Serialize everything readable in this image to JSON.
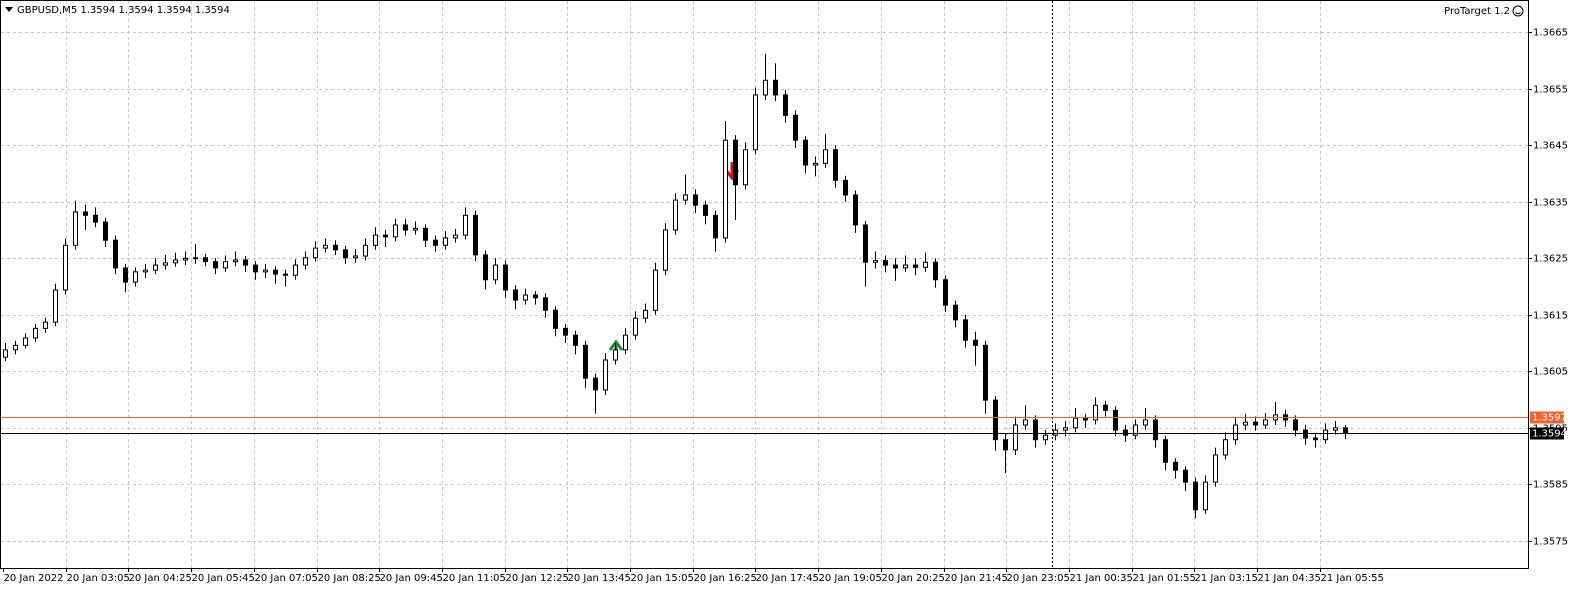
{
  "chart_data": {
    "type": "candlestick",
    "title": "GBPUSD,M5  1.3594 1.3594 1.3594 1.3594",
    "indicator": "ProTarget 1.2",
    "ylim": [
      1.35702,
      1.36707
    ],
    "yticks": [
      1.3575,
      1.3585,
      1.3595,
      1.3605,
      1.3615,
      1.3625,
      1.3635,
      1.3645,
      1.3655,
      1.3665
    ],
    "grid": true,
    "xtick_labels": [
      "20 Jan 2022",
      "20 Jan 03:05",
      "20 Jan 04:25",
      "20 Jan 05:45",
      "20 Jan 07:05",
      "20 Jan 08:25",
      "20 Jan 09:45",
      "20 Jan 11:05",
      "20 Jan 12:25",
      "20 Jan 13:45",
      "20 Jan 15:05",
      "20 Jan 16:25",
      "20 Jan 17:45",
      "20 Jan 19:05",
      "20 Jan 20:25",
      "20 Jan 21:45",
      "20 Jan 23:05",
      "21 Jan 00:35",
      "21 Jan 01:55",
      "21 Jan 03:15",
      "21 Jan 04:35",
      "21 Jan 05:55"
    ],
    "price_lines": [
      {
        "value": 1.3597,
        "color": "#f0642a",
        "label_color": "#fff"
      },
      {
        "value": 1.3594,
        "color": "#000000",
        "label_color": "#fff"
      }
    ],
    "candles": [
      [
        1.36075,
        1.361,
        1.36068,
        1.36088
      ],
      [
        1.36088,
        1.36104,
        1.3608,
        1.36096
      ],
      [
        1.36096,
        1.36117,
        1.3609,
        1.36109
      ],
      [
        1.36109,
        1.36134,
        1.36102,
        1.36126
      ],
      [
        1.36126,
        1.36145,
        1.36118,
        1.36137
      ],
      [
        1.36137,
        1.36205,
        1.3613,
        1.36194
      ],
      [
        1.36194,
        1.36285,
        1.36186,
        1.36273
      ],
      [
        1.36273,
        1.36352,
        1.36265,
        1.36332
      ],
      [
        1.36332,
        1.36345,
        1.363,
        1.36326
      ],
      [
        1.36326,
        1.3634,
        1.36305,
        1.36314
      ],
      [
        1.36314,
        1.36322,
        1.3627,
        1.36282
      ],
      [
        1.36282,
        1.3629,
        1.36222,
        1.36233
      ],
      [
        1.36233,
        1.3624,
        1.3619,
        1.36208
      ],
      [
        1.36208,
        1.36234,
        1.362,
        1.36226
      ],
      [
        1.36226,
        1.3624,
        1.36215,
        1.36229
      ],
      [
        1.36229,
        1.3625,
        1.36222,
        1.36238
      ],
      [
        1.36238,
        1.36256,
        1.3623,
        1.36242
      ],
      [
        1.36242,
        1.3626,
        1.36235,
        1.36247
      ],
      [
        1.36247,
        1.36262,
        1.36238,
        1.3625
      ],
      [
        1.3625,
        1.36275,
        1.3624,
        1.36251
      ],
      [
        1.36251,
        1.36258,
        1.36236,
        1.36244
      ],
      [
        1.36244,
        1.3625,
        1.36222,
        1.36233
      ],
      [
        1.36233,
        1.36255,
        1.36226,
        1.36244
      ],
      [
        1.36244,
        1.36262,
        1.36236,
        1.36247
      ],
      [
        1.36247,
        1.36254,
        1.36226,
        1.36238
      ],
      [
        1.36238,
        1.36245,
        1.36212,
        1.36226
      ],
      [
        1.36226,
        1.3624,
        1.36215,
        1.36229
      ],
      [
        1.36229,
        1.36236,
        1.36205,
        1.36222
      ],
      [
        1.36222,
        1.3623,
        1.362,
        1.3622
      ],
      [
        1.3622,
        1.36248,
        1.36212,
        1.36238
      ],
      [
        1.36238,
        1.36262,
        1.3623,
        1.36251
      ],
      [
        1.36251,
        1.3628,
        1.36244,
        1.36268
      ],
      [
        1.36268,
        1.36285,
        1.3626,
        1.36273
      ],
      [
        1.36273,
        1.36282,
        1.36256,
        1.36265
      ],
      [
        1.36265,
        1.36272,
        1.3624,
        1.36251
      ],
      [
        1.36251,
        1.36266,
        1.36242,
        1.36254
      ],
      [
        1.36254,
        1.36285,
        1.36246,
        1.36273
      ],
      [
        1.36273,
        1.36305,
        1.36265,
        1.36291
      ],
      [
        1.36291,
        1.363,
        1.3627,
        1.36288
      ],
      [
        1.36288,
        1.3632,
        1.3628,
        1.36309
      ],
      [
        1.36309,
        1.3632,
        1.3629,
        1.363
      ],
      [
        1.363,
        1.36315,
        1.36292,
        1.36303
      ],
      [
        1.36303,
        1.3631,
        1.3627,
        1.36282
      ],
      [
        1.36282,
        1.3629,
        1.36262,
        1.36273
      ],
      [
        1.36273,
        1.36298,
        1.36265,
        1.36286
      ],
      [
        1.36286,
        1.36302,
        1.36278,
        1.36291
      ],
      [
        1.36291,
        1.3634,
        1.36284,
        1.36326
      ],
      [
        1.36326,
        1.36334,
        1.36245,
        1.36256
      ],
      [
        1.36256,
        1.36264,
        1.36195,
        1.36212
      ],
      [
        1.36212,
        1.3625,
        1.36204,
        1.36238
      ],
      [
        1.36238,
        1.36246,
        1.3618,
        1.36194
      ],
      [
        1.36194,
        1.36202,
        1.3616,
        1.36176
      ],
      [
        1.36176,
        1.36196,
        1.36168,
        1.36185
      ],
      [
        1.36185,
        1.36192,
        1.36168,
        1.3618
      ],
      [
        1.3618,
        1.36188,
        1.36145,
        1.36158
      ],
      [
        1.36158,
        1.36165,
        1.36112,
        1.36126
      ],
      [
        1.36126,
        1.36134,
        1.361,
        1.36114
      ],
      [
        1.36114,
        1.36122,
        1.3608,
        1.36096
      ],
      [
        1.36096,
        1.36104,
        1.3602,
        1.36038
      ],
      [
        1.36038,
        1.36046,
        1.35975,
        1.36017
      ],
      [
        1.36017,
        1.36082,
        1.36008,
        1.3607
      ],
      [
        1.3607,
        1.361,
        1.36062,
        1.36088
      ],
      [
        1.36088,
        1.36126,
        1.3608,
        1.36114
      ],
      [
        1.36114,
        1.36156,
        1.36106,
        1.36144
      ],
      [
        1.36144,
        1.3617,
        1.36136,
        1.36158
      ],
      [
        1.36158,
        1.36242,
        1.3615,
        1.36229
      ],
      [
        1.36229,
        1.36312,
        1.3622,
        1.363
      ],
      [
        1.363,
        1.36365,
        1.36292,
        1.36353
      ],
      [
        1.36353,
        1.36398,
        1.36345,
        1.36362
      ],
      [
        1.36362,
        1.36372,
        1.3633,
        1.36344
      ],
      [
        1.36344,
        1.36352,
        1.3631,
        1.36326
      ],
      [
        1.36326,
        1.36334,
        1.36262,
        1.36286
      ],
      [
        1.36286,
        1.36493,
        1.36278,
        1.36459
      ],
      [
        1.36459,
        1.36468,
        1.36318,
        1.3638
      ],
      [
        1.3638,
        1.36455,
        1.36372,
        1.36442
      ],
      [
        1.36442,
        1.36552,
        1.36434,
        1.36539
      ],
      [
        1.36539,
        1.36612,
        1.3653,
        1.36565
      ],
      [
        1.36565,
        1.36595,
        1.36528,
        1.36539
      ],
      [
        1.36539,
        1.36548,
        1.3649,
        1.36503
      ],
      [
        1.36503,
        1.36512,
        1.36445,
        1.36459
      ],
      [
        1.36459,
        1.36466,
        1.364,
        1.36415
      ],
      [
        1.36415,
        1.3643,
        1.36395,
        1.36418
      ],
      [
        1.36418,
        1.3647,
        1.3641,
        1.36442
      ],
      [
        1.36442,
        1.3645,
        1.36375,
        1.36388
      ],
      [
        1.36388,
        1.36396,
        1.3635,
        1.36362
      ],
      [
        1.36362,
        1.3637,
        1.36295,
        1.36309
      ],
      [
        1.36309,
        1.36316,
        1.362,
        1.36243
      ],
      [
        1.36243,
        1.36262,
        1.36232,
        1.36246
      ],
      [
        1.36246,
        1.36255,
        1.36225,
        1.36238
      ],
      [
        1.36238,
        1.3625,
        1.3621,
        1.36233
      ],
      [
        1.36233,
        1.36255,
        1.36226,
        1.36238
      ],
      [
        1.36238,
        1.3625,
        1.3622,
        1.36234
      ],
      [
        1.36234,
        1.3626,
        1.36226,
        1.36243
      ],
      [
        1.36243,
        1.3625,
        1.36198,
        1.36212
      ],
      [
        1.36212,
        1.3622,
        1.36155,
        1.36167
      ],
      [
        1.36167,
        1.36175,
        1.36128,
        1.36141
      ],
      [
        1.36141,
        1.3615,
        1.36092,
        1.36105
      ],
      [
        1.36105,
        1.3612,
        1.3606,
        1.36096
      ],
      [
        1.36096,
        1.36104,
        1.35975,
        1.35999
      ],
      [
        1.35999,
        1.36006,
        1.3591,
        1.35929
      ],
      [
        1.35929,
        1.3594,
        1.3587,
        1.35911
      ],
      [
        1.35911,
        1.3597,
        1.35902,
        1.35955
      ],
      [
        1.35955,
        1.3599,
        1.35946,
        1.35964
      ],
      [
        1.35964,
        1.35972,
        1.35915,
        1.35929
      ],
      [
        1.35929,
        1.35946,
        1.3592,
        1.35937
      ],
      [
        1.35937,
        1.35958,
        1.35928,
        1.35946
      ],
      [
        1.35946,
        1.35962,
        1.35935,
        1.3595
      ],
      [
        1.3595,
        1.35985,
        1.35942,
        1.35967
      ],
      [
        1.35967,
        1.35975,
        1.3595,
        1.35964
      ],
      [
        1.35964,
        1.36004,
        1.35956,
        1.3599
      ],
      [
        1.3599,
        1.35998,
        1.3597,
        1.35981
      ],
      [
        1.35981,
        1.35988,
        1.35935,
        1.35946
      ],
      [
        1.35946,
        1.35955,
        1.35925,
        1.35937
      ],
      [
        1.35937,
        1.35965,
        1.3593,
        1.35955
      ],
      [
        1.35955,
        1.35985,
        1.35946,
        1.35964
      ],
      [
        1.35964,
        1.35972,
        1.35915,
        1.35929
      ],
      [
        1.35929,
        1.35936,
        1.35875,
        1.35889
      ],
      [
        1.35889,
        1.35896,
        1.3586,
        1.35875
      ],
      [
        1.35875,
        1.35882,
        1.35838,
        1.35854
      ],
      [
        1.35854,
        1.35862,
        1.3579,
        1.35805
      ],
      [
        1.35805,
        1.35866,
        1.35798,
        1.35854
      ],
      [
        1.35854,
        1.35915,
        1.35846,
        1.35902
      ],
      [
        1.35902,
        1.35942,
        1.35894,
        1.35929
      ],
      [
        1.35929,
        1.35968,
        1.3592,
        1.35955
      ],
      [
        1.35955,
        1.35975,
        1.35946,
        1.3596
      ],
      [
        1.3596,
        1.3597,
        1.35945,
        1.35955
      ],
      [
        1.35955,
        1.35976,
        1.35948,
        1.35964
      ],
      [
        1.35964,
        1.35996,
        1.35955,
        1.35973
      ],
      [
        1.35973,
        1.35982,
        1.35952,
        1.35964
      ],
      [
        1.35964,
        1.35972,
        1.35935,
        1.35946
      ],
      [
        1.35946,
        1.35955,
        1.3592,
        1.35932
      ],
      [
        1.35932,
        1.3594,
        1.35915,
        1.35929
      ],
      [
        1.35929,
        1.35958,
        1.35922,
        1.35946
      ],
      [
        1.35946,
        1.35962,
        1.35938,
        1.3595
      ],
      [
        1.3595,
        1.35955,
        1.3593,
        1.3594
      ]
    ]
  }
}
